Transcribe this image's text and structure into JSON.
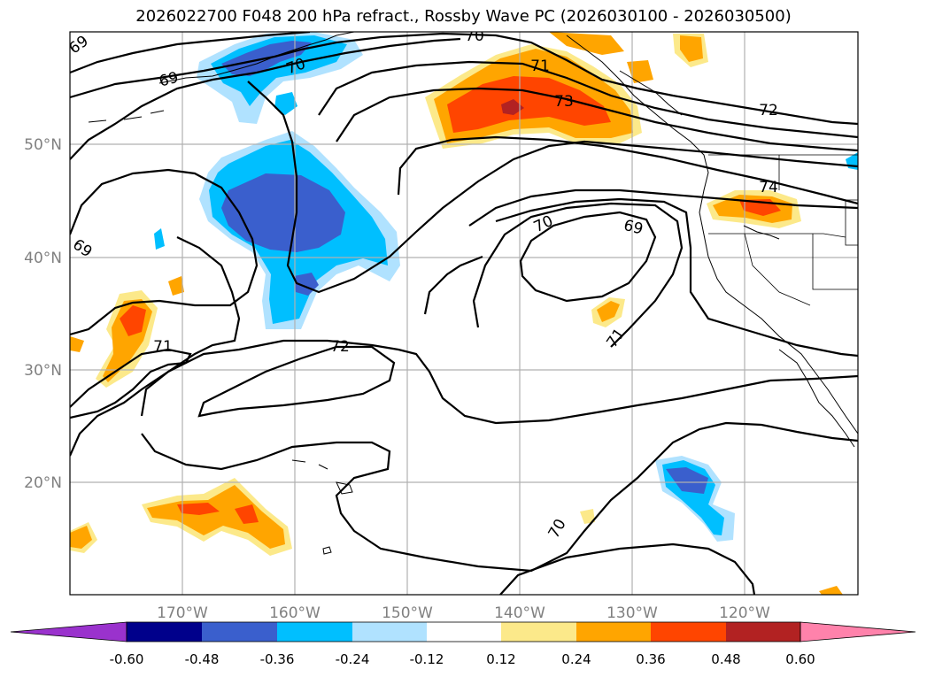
{
  "title": "2026022700 F048 200 hPa refract., Rossby Wave PC (2026030100 - 2026030500)",
  "map": {
    "lon_ticks": [
      "170°W",
      "160°W",
      "150°W",
      "140°W",
      "130°W",
      "120°W"
    ],
    "lat_ticks": [
      "50°N",
      "40°N",
      "30°N",
      "20°N"
    ],
    "contour_labels": [
      "70",
      "71",
      "73",
      "72",
      "69",
      "69",
      "70",
      "69",
      "74",
      "70",
      "69",
      "71",
      "72",
      "71",
      "70"
    ]
  },
  "colorbar": {
    "ticks": [
      "-0.60",
      "-0.48",
      "-0.36",
      "-0.24",
      "-0.12",
      "0.12",
      "0.24",
      "0.36",
      "0.48",
      "0.60"
    ],
    "colors": [
      "#9a32cd",
      "#00008b",
      "#3a5fcd",
      "#00bfff",
      "#b0e2ff",
      "#ffffff",
      "#fce98a",
      "#ffa500",
      "#ff4500",
      "#b22222",
      "#ff82ab"
    ]
  },
  "colors": {
    "neg_strong": "#3a5fcd",
    "neg_mid": "#00bfff",
    "neg_weak": "#b0e2ff",
    "pos_weak": "#fce98a",
    "pos_mid": "#ffa500",
    "pos_strong": "#ff4500",
    "pos_max": "#b22222"
  }
}
